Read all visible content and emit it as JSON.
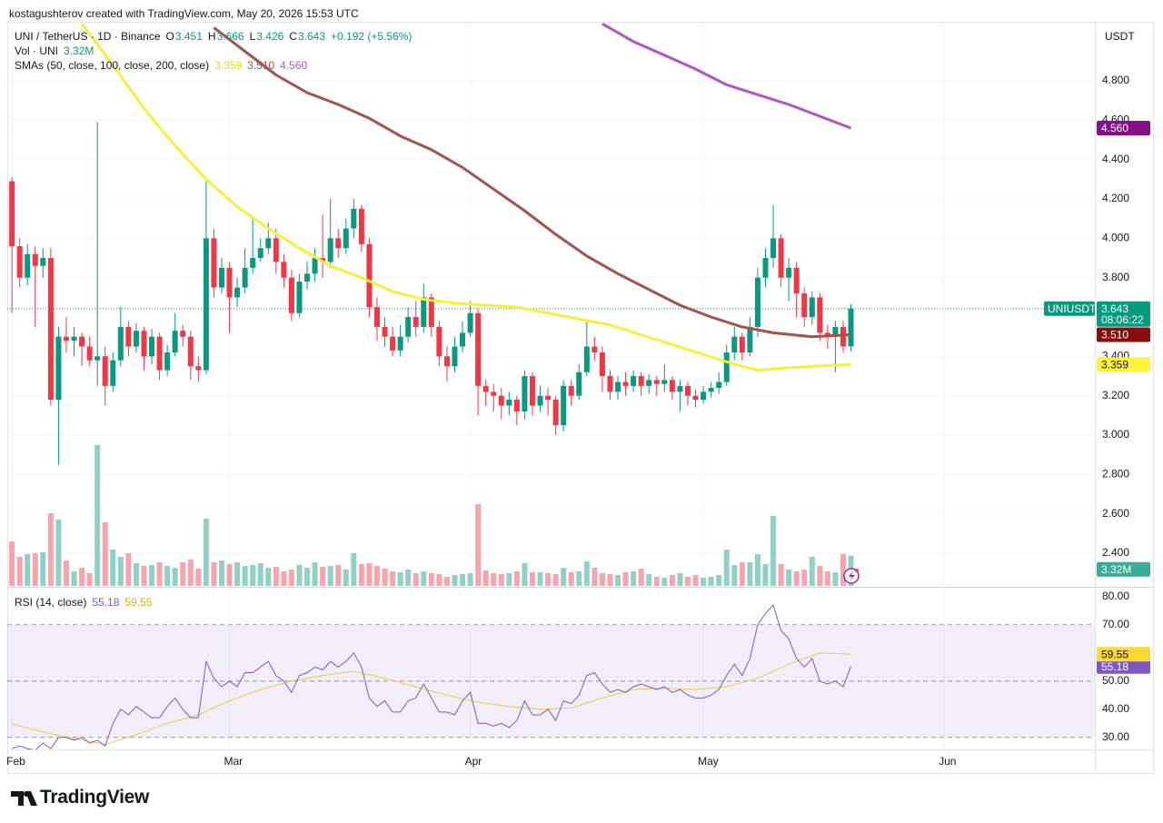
{
  "header": {
    "attribution": "kostagushterov created with TradingView.com, May 20, 2026 15:53 UTC",
    "currency": "USDT"
  },
  "footer": {
    "logo": "TradingView"
  },
  "chart_data": [
    {
      "type": "candlestick",
      "legend": {
        "symbol": "UNI / TetherUS · 1D · Binance",
        "ohlc": [
          {
            "key": "O",
            "value": "3.451"
          },
          {
            "key": "H",
            "value": "3.666"
          },
          {
            "key": "L",
            "value": "3.426"
          },
          {
            "key": "C",
            "value": "3.643"
          }
        ],
        "change": "+0.192 (+5.56%)",
        "volume": "Vol · UNI",
        "sma": "SMAs (50, close, 100, close, 200, close)"
      },
      "last_price": {
        "name": "UNIUSDT",
        "label": "3.643",
        "countdown": "08:06:22"
      },
      "colors": {
        "up": "#089981",
        "down": "#f23645"
      },
      "x": [
        0,
        1,
        2,
        3,
        4,
        5,
        6,
        7,
        8,
        9,
        10,
        11,
        12,
        13,
        14,
        15,
        16,
        17,
        18,
        19,
        20,
        21,
        22,
        23,
        24,
        25,
        26,
        27,
        28,
        29,
        30,
        31,
        32,
        33,
        34,
        35,
        36,
        37,
        38,
        39,
        40,
        41,
        42,
        43,
        44,
        45,
        46,
        47,
        48,
        49,
        50,
        51,
        52,
        53,
        54,
        55,
        56,
        57,
        58,
        59,
        60,
        61,
        62,
        63,
        64,
        65,
        66,
        67,
        68,
        69,
        70,
        71,
        72,
        73,
        74,
        75,
        76,
        77,
        78,
        79,
        80,
        81,
        82,
        83,
        84,
        85,
        86,
        87,
        88,
        89,
        90,
        91,
        92,
        93,
        94,
        95,
        96,
        97,
        98,
        99,
        100,
        101,
        102,
        103,
        104,
        105,
        106,
        107,
        108
      ],
      "open": [
        4.29,
        3.96,
        3.8,
        3.92,
        3.86,
        3.9,
        3.18,
        3.5,
        3.48,
        3.5,
        3.45,
        3.38,
        3.4,
        3.25,
        3.38,
        3.55,
        3.45,
        3.53,
        3.4,
        3.5,
        3.33,
        3.42,
        3.53,
        3.5,
        3.35,
        3.33,
        4.0,
        3.75,
        3.85,
        3.7,
        3.75,
        3.85,
        3.9,
        3.95,
        4.0,
        3.88,
        3.8,
        3.62,
        3.78,
        3.82,
        3.9,
        3.88,
        4.0,
        3.95,
        4.05,
        4.15,
        3.97,
        3.65,
        3.55,
        3.5,
        3.43,
        3.5,
        3.6,
        3.55,
        3.7,
        3.55,
        3.4,
        3.35,
        3.45,
        3.52,
        3.62,
        3.25,
        3.22,
        3.2,
        3.15,
        3.18,
        3.12,
        3.3,
        3.15,
        3.2,
        3.18,
        3.05,
        3.25,
        3.2,
        3.32,
        3.45,
        3.42,
        3.3,
        3.22,
        3.27,
        3.25,
        3.3,
        3.25,
        3.28,
        3.26,
        3.28,
        3.22,
        3.25,
        3.2,
        3.18,
        3.22,
        3.24,
        3.27,
        3.42,
        3.5,
        3.42,
        3.55,
        3.8,
        3.9,
        4.0,
        3.8,
        3.85,
        3.72,
        3.6,
        3.7,
        3.52,
        3.5,
        3.55,
        3.451
      ],
      "high": [
        4.31,
        4.0,
        3.97,
        3.96,
        3.95,
        3.95,
        3.55,
        3.6,
        3.55,
        3.52,
        3.5,
        4.59,
        3.45,
        3.42,
        3.65,
        3.58,
        3.57,
        3.55,
        3.54,
        3.52,
        3.46,
        3.62,
        3.56,
        3.53,
        3.4,
        4.29,
        4.05,
        3.9,
        3.88,
        3.8,
        3.95,
        4.1,
        4.0,
        4.08,
        4.05,
        3.92,
        3.84,
        3.82,
        3.88,
        3.95,
        4.12,
        4.2,
        4.05,
        4.1,
        4.2,
        4.17,
        4.0,
        3.7,
        3.6,
        3.55,
        3.56,
        3.65,
        3.68,
        3.77,
        3.72,
        3.58,
        3.45,
        3.5,
        3.58,
        3.68,
        3.64,
        3.28,
        3.26,
        3.24,
        3.22,
        3.2,
        3.33,
        3.32,
        3.25,
        3.24,
        3.2,
        3.28,
        3.28,
        3.36,
        3.58,
        3.5,
        3.45,
        3.33,
        3.3,
        3.32,
        3.33,
        3.32,
        3.31,
        3.3,
        3.36,
        3.3,
        3.28,
        3.27,
        3.23,
        3.25,
        3.27,
        3.32,
        3.46,
        3.55,
        3.52,
        3.6,
        3.85,
        3.95,
        4.17,
        4.02,
        3.9,
        3.88,
        3.75,
        3.73,
        3.72,
        3.56,
        3.58,
        3.58,
        3.666
      ],
      "low": [
        3.62,
        3.75,
        3.76,
        3.55,
        3.8,
        3.15,
        2.85,
        3.42,
        3.4,
        3.35,
        3.35,
        3.25,
        3.15,
        3.22,
        3.35,
        3.4,
        3.42,
        3.33,
        3.36,
        3.28,
        3.3,
        3.4,
        3.45,
        3.28,
        3.27,
        3.31,
        3.7,
        3.72,
        3.52,
        3.65,
        3.72,
        3.82,
        3.88,
        3.92,
        3.82,
        3.75,
        3.58,
        3.6,
        3.74,
        3.78,
        3.8,
        3.85,
        3.9,
        3.92,
        4.0,
        3.93,
        3.6,
        3.48,
        3.45,
        3.4,
        3.4,
        3.47,
        3.5,
        3.52,
        3.5,
        3.35,
        3.27,
        3.32,
        3.42,
        3.5,
        3.1,
        3.15,
        3.12,
        3.08,
        3.1,
        3.05,
        3.08,
        3.1,
        3.12,
        3.1,
        3.0,
        3.02,
        3.15,
        3.18,
        3.3,
        3.38,
        3.22,
        3.18,
        3.18,
        3.2,
        3.22,
        3.2,
        3.21,
        3.2,
        3.22,
        3.18,
        3.12,
        3.15,
        3.14,
        3.16,
        3.19,
        3.21,
        3.25,
        3.38,
        3.38,
        3.4,
        3.5,
        3.75,
        3.85,
        3.75,
        3.68,
        3.6,
        3.55,
        3.56,
        3.48,
        3.44,
        3.32,
        3.42,
        3.426
      ],
      "close": [
        3.96,
        3.8,
        3.92,
        3.86,
        3.9,
        3.18,
        3.5,
        3.48,
        3.5,
        3.45,
        3.38,
        3.4,
        3.25,
        3.38,
        3.55,
        3.45,
        3.53,
        3.4,
        3.5,
        3.33,
        3.42,
        3.53,
        3.5,
        3.35,
        3.33,
        4.0,
        3.75,
        3.85,
        3.7,
        3.75,
        3.85,
        3.9,
        3.95,
        4.0,
        3.88,
        3.8,
        3.62,
        3.78,
        3.82,
        3.9,
        3.88,
        4.0,
        3.95,
        4.05,
        4.15,
        3.97,
        3.65,
        3.55,
        3.5,
        3.43,
        3.5,
        3.6,
        3.55,
        3.7,
        3.55,
        3.4,
        3.35,
        3.45,
        3.52,
        3.62,
        3.25,
        3.22,
        3.2,
        3.15,
        3.18,
        3.12,
        3.3,
        3.15,
        3.2,
        3.18,
        3.05,
        3.25,
        3.2,
        3.32,
        3.45,
        3.42,
        3.3,
        3.22,
        3.27,
        3.25,
        3.3,
        3.25,
        3.28,
        3.26,
        3.28,
        3.22,
        3.25,
        3.2,
        3.18,
        3.22,
        3.24,
        3.27,
        3.42,
        3.5,
        3.42,
        3.55,
        3.8,
        3.9,
        4.0,
        3.8,
        3.85,
        3.72,
        3.6,
        3.7,
        3.52,
        3.5,
        3.55,
        3.451,
        3.643
      ],
      "volume": [
        4.9,
        3.2,
        3.5,
        3.6,
        3.7,
        8.0,
        7.3,
        2.8,
        1.6,
        2.0,
        1.4,
        15.5,
        7.0,
        4.0,
        3.2,
        3.6,
        2.5,
        2.2,
        2.3,
        2.6,
        2.2,
        2.0,
        2.6,
        2.9,
        1.9,
        7.4,
        2.6,
        2.8,
        2.4,
        2.6,
        2.2,
        2.3,
        2.5,
        2.0,
        2.1,
        1.6,
        1.8,
        2.3,
        2.0,
        2.6,
        2.1,
        2.2,
        2.3,
        1.8,
        3.6,
        2.4,
        2.5,
        2.2,
        1.9,
        1.6,
        1.5,
        1.8,
        1.4,
        1.6,
        1.4,
        1.3,
        1.0,
        1.2,
        1.3,
        1.4,
        9.0,
        1.7,
        1.4,
        1.3,
        1.4,
        1.6,
        2.5,
        1.5,
        1.5,
        1.4,
        1.3,
        2.0,
        1.5,
        1.6,
        2.7,
        2.0,
        1.4,
        1.3,
        1.2,
        1.5,
        1.6,
        1.9,
        1.3,
        1.0,
        0.9,
        1.2,
        1.4,
        1.0,
        1.2,
        0.9,
        1.0,
        1.2,
        4.0,
        2.3,
        2.6,
        2.6,
        3.5,
        2.4,
        7.7,
        2.4,
        1.8,
        1.6,
        1.8,
        3.2,
        2.2,
        1.6,
        1.5,
        3.5,
        3.32
      ],
      "volume_last_label": "3.32M",
      "volume_lim": [
        0,
        62.1
      ],
      "xlim": [
        -0.6,
        139.4
      ],
      "xticks": [
        {
          "value": 0,
          "label": "Feb"
        },
        {
          "value": 28,
          "label": "Mar"
        },
        {
          "value": 59,
          "label": "Apr"
        },
        {
          "value": 89,
          "label": "May"
        },
        {
          "value": 120,
          "label": "Jun"
        }
      ],
      "ylim": [
        2.234,
        5.1
      ],
      "yticks": [
        {
          "value": 2.4,
          "label": "2.400"
        },
        {
          "value": 2.6,
          "label": "2.600"
        },
        {
          "value": 2.8,
          "label": "2.800"
        },
        {
          "value": 3.0,
          "label": "3.000"
        },
        {
          "value": 3.2,
          "label": "3.200"
        },
        {
          "value": 3.4,
          "label": "3.400"
        },
        {
          "value": 3.6,
          "label": "3.600"
        },
        {
          "value": 3.8,
          "label": "3.800"
        },
        {
          "value": 4.0,
          "label": "4.000"
        },
        {
          "value": 4.2,
          "label": "4.200"
        },
        {
          "value": 4.4,
          "label": "4.400"
        },
        {
          "value": 4.6,
          "label": "4.600"
        },
        {
          "value": 4.8,
          "label": "4.800"
        }
      ],
      "grid": true,
      "series": [
        {
          "color": "#f7f03a",
          "label_color": "#fff23d",
          "last_label": "3.359",
          "x": [
            9,
            13,
            17,
            21,
            25,
            29,
            33,
            37,
            41,
            45,
            49,
            53,
            57,
            61,
            65,
            69,
            73,
            77,
            81,
            85,
            89,
            93,
            96,
            99,
            103,
            108
          ],
          "values": [
            5.09,
            4.88,
            4.66,
            4.47,
            4.3,
            4.16,
            4.05,
            3.95,
            3.86,
            3.8,
            3.73,
            3.69,
            3.67,
            3.66,
            3.65,
            3.62,
            3.59,
            3.56,
            3.51,
            3.46,
            3.41,
            3.36,
            3.33,
            3.34,
            3.35,
            3.359
          ]
        },
        {
          "color": "#a5524a",
          "label_color": "#880e0e",
          "last_label": "3.510",
          "x": [
            26,
            30,
            34,
            38,
            42,
            46,
            50,
            54,
            58,
            62,
            66,
            70,
            74,
            78,
            82,
            86,
            90,
            94,
            98,
            103,
            108
          ],
          "values": [
            5.07,
            4.95,
            4.83,
            4.74,
            4.68,
            4.61,
            4.52,
            4.45,
            4.36,
            4.25,
            4.14,
            4.02,
            3.91,
            3.82,
            3.74,
            3.66,
            3.6,
            3.55,
            3.52,
            3.5,
            3.51
          ]
        },
        {
          "color": "#b154c4",
          "label_color": "#880e88",
          "last_label": "4.560",
          "x": [
            76,
            80,
            84,
            88,
            92,
            96,
            100,
            104,
            108
          ],
          "values": [
            5.09,
            5.0,
            4.93,
            4.86,
            4.78,
            4.73,
            4.68,
            4.62,
            4.56
          ]
        }
      ]
    },
    {
      "type": "line",
      "title": "RSI (14, close)",
      "ylim": [
        25.74,
        82.84
      ],
      "yticks": [
        {
          "value": 30,
          "label": "30.00"
        },
        {
          "value": 40,
          "label": "40.00"
        },
        {
          "value": 50,
          "label": "50.00"
        },
        {
          "value": 60,
          "label": "60.00"
        },
        {
          "value": 70,
          "label": "70.00"
        },
        {
          "value": 80,
          "label": "80.00"
        }
      ],
      "band": [
        30,
        70
      ],
      "levels": [
        70,
        50,
        30
      ],
      "series": [
        {
          "color": "#7e57c2",
          "label_color": "#7e57c2",
          "last_label": "55.18",
          "x": [
            0,
            1,
            2,
            3,
            4,
            5,
            6,
            7,
            8,
            9,
            10,
            11,
            12,
            13,
            14,
            15,
            16,
            17,
            18,
            19,
            20,
            21,
            22,
            23,
            24,
            25,
            26,
            27,
            28,
            29,
            30,
            31,
            32,
            33,
            34,
            35,
            36,
            37,
            38,
            39,
            40,
            41,
            42,
            43,
            44,
            45,
            46,
            47,
            48,
            49,
            50,
            51,
            52,
            53,
            54,
            55,
            56,
            57,
            58,
            59,
            60,
            61,
            62,
            63,
            64,
            65,
            66,
            67,
            68,
            69,
            70,
            71,
            72,
            73,
            74,
            75,
            76,
            77,
            78,
            79,
            80,
            81,
            82,
            83,
            84,
            85,
            86,
            87,
            88,
            89,
            90,
            91,
            92,
            93,
            94,
            95,
            96,
            97,
            98,
            99,
            100,
            101,
            102,
            103,
            104,
            105,
            106,
            107,
            108
          ],
          "values": [
            26,
            27,
            26,
            25.5,
            28,
            26,
            30,
            30,
            29,
            30,
            28,
            29,
            27,
            35,
            40,
            38,
            41,
            39,
            37,
            37,
            41,
            44,
            40,
            37,
            37,
            57,
            51,
            48,
            50,
            48,
            53,
            53,
            55,
            57,
            52,
            50,
            46,
            52,
            53,
            55,
            54,
            57,
            55,
            57,
            60,
            55,
            44,
            41,
            43,
            39,
            39,
            43,
            44,
            49,
            44,
            39,
            39,
            38,
            43,
            46,
            35,
            35,
            34,
            35,
            33.5,
            36,
            43,
            38,
            38,
            40,
            36,
            43,
            42,
            45,
            52,
            53,
            49,
            46,
            47,
            46,
            48,
            49,
            48,
            47,
            48,
            46,
            47,
            45,
            44,
            44,
            45,
            47,
            52,
            56,
            52,
            58,
            70,
            74,
            77,
            68,
            65,
            58,
            55,
            58,
            50,
            49,
            50,
            48,
            55.18
          ]
        },
        {
          "color": "#f5c542",
          "label_color": "#fdd835",
          "last_label": "59.55",
          "x": [
            0,
            4,
            8,
            12,
            16,
            20,
            24,
            28,
            32,
            36,
            40,
            44,
            48,
            52,
            56,
            60,
            64,
            68,
            72,
            76,
            80,
            84,
            88,
            92,
            96,
            100,
            104,
            108
          ],
          "values": [
            34.8,
            32,
            29.5,
            27.5,
            31,
            35,
            38,
            43,
            47,
            50,
            52,
            53.5,
            51,
            48,
            45,
            42.5,
            41,
            40,
            40.5,
            44,
            47,
            47.5,
            47,
            48,
            51,
            56,
            60,
            59.55
          ]
        }
      ]
    }
  ]
}
